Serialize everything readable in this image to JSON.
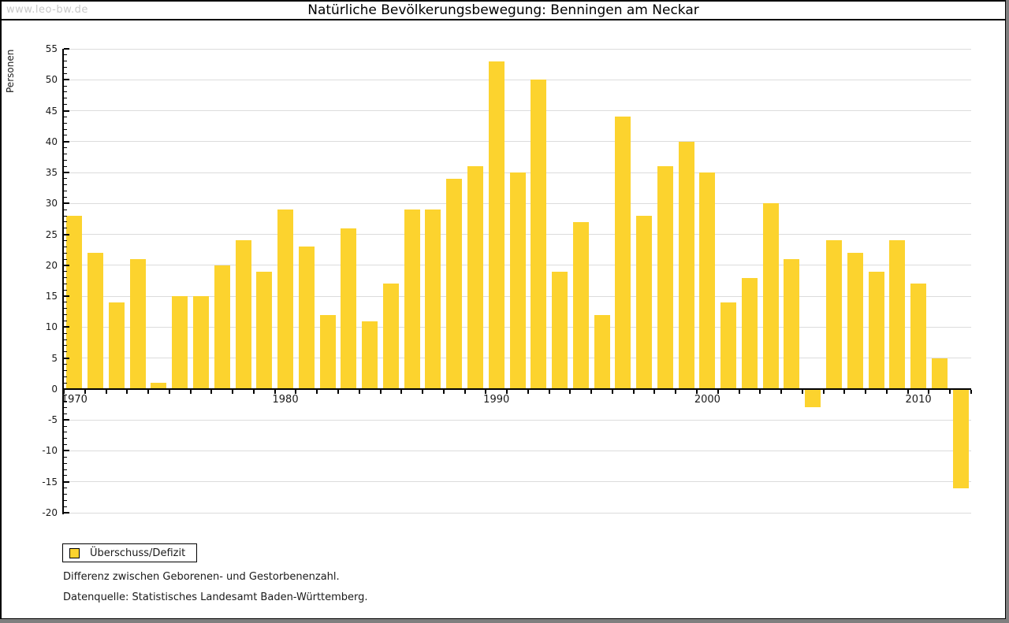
{
  "watermark": "www.leo-bw.de",
  "header": {
    "title": "Natürliche Bevölkerungsbewegung: Benningen am Neckar"
  },
  "y_axis_title": "Personen",
  "legend": {
    "label": "Überschuss/Defizit"
  },
  "footnotes": [
    "Differenz zwischen Geborenen- und Gestorbenenzahl.",
    "Datenquelle: Statistisches Landesamt Baden-Württemberg."
  ],
  "colors": {
    "bar": "#FCD32E",
    "grid": "#DCDCDC",
    "axis": "#000000",
    "watermark": "#C8C8C8",
    "frame_shadow": "#7F7F7F"
  },
  "chart_data": {
    "type": "bar",
    "title": "Natürliche Bevölkerungsbewegung: Benningen am Neckar",
    "ylabel": "Personen",
    "series_name": "Überschuss/Defizit",
    "categories": [
      1970,
      1971,
      1972,
      1973,
      1974,
      1975,
      1976,
      1977,
      1978,
      1979,
      1980,
      1981,
      1982,
      1983,
      1984,
      1985,
      1986,
      1987,
      1988,
      1989,
      1990,
      1991,
      1992,
      1993,
      1994,
      1995,
      1996,
      1997,
      1998,
      1999,
      2000,
      2001,
      2002,
      2003,
      2004,
      2005,
      2006,
      2007,
      2008,
      2009,
      2010,
      2011,
      2012
    ],
    "values": [
      28,
      22,
      14,
      21,
      1,
      15,
      15,
      20,
      24,
      19,
      29,
      23,
      12,
      26,
      11,
      17,
      29,
      29,
      34,
      36,
      53,
      35,
      50,
      19,
      27,
      12,
      44,
      28,
      36,
      40,
      35,
      14,
      18,
      30,
      21,
      -3,
      24,
      22,
      19,
      24,
      17,
      5,
      -16
    ],
    "ylim": [
      -20,
      55
    ],
    "ytick_step": 5,
    "ytick_minor_step": 1,
    "x_axis_labels": [
      1970,
      1980,
      1990,
      2000,
      2010
    ],
    "grid": true,
    "bar_color": "#FCD32E",
    "legend_position": "bottom-left"
  }
}
